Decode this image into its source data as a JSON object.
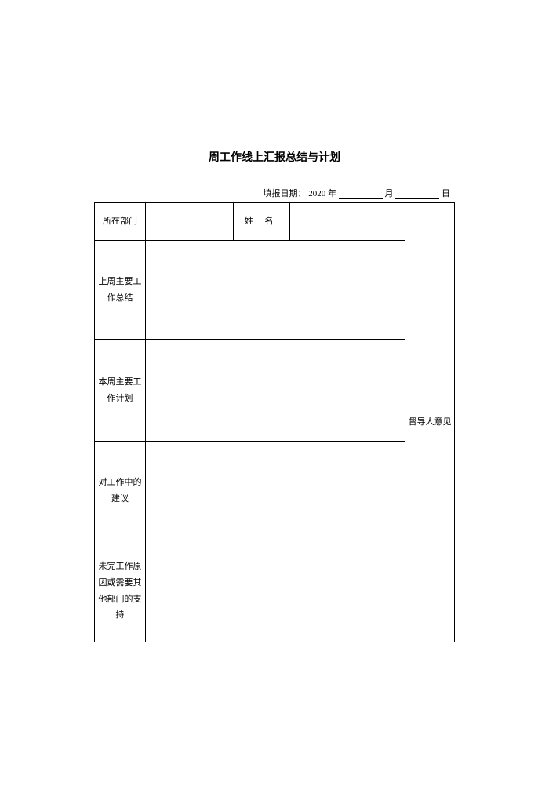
{
  "title": "周工作线上汇报总结与计划",
  "dateLine": {
    "label": "填报日期：",
    "year": "2020 年",
    "monthSuffix": "月",
    "daySuffix": "日"
  },
  "header": {
    "departmentLabel": "所在部门",
    "nameLabel": "姓  名",
    "opinionLabel": "督导人意见"
  },
  "sections": {
    "lastWeekSummary": "上周主要工作总结",
    "thisWeekPlan": "本周主要工作计划",
    "workSuggestions": "对工作中的建议",
    "incompleteReasons": "未完工作原因或需要其他部门的支持"
  },
  "style": {
    "background": "#ffffff",
    "textColor": "#000000",
    "borderColor": "#000000",
    "titleFontSize": 14,
    "cellFontSize": 11
  }
}
